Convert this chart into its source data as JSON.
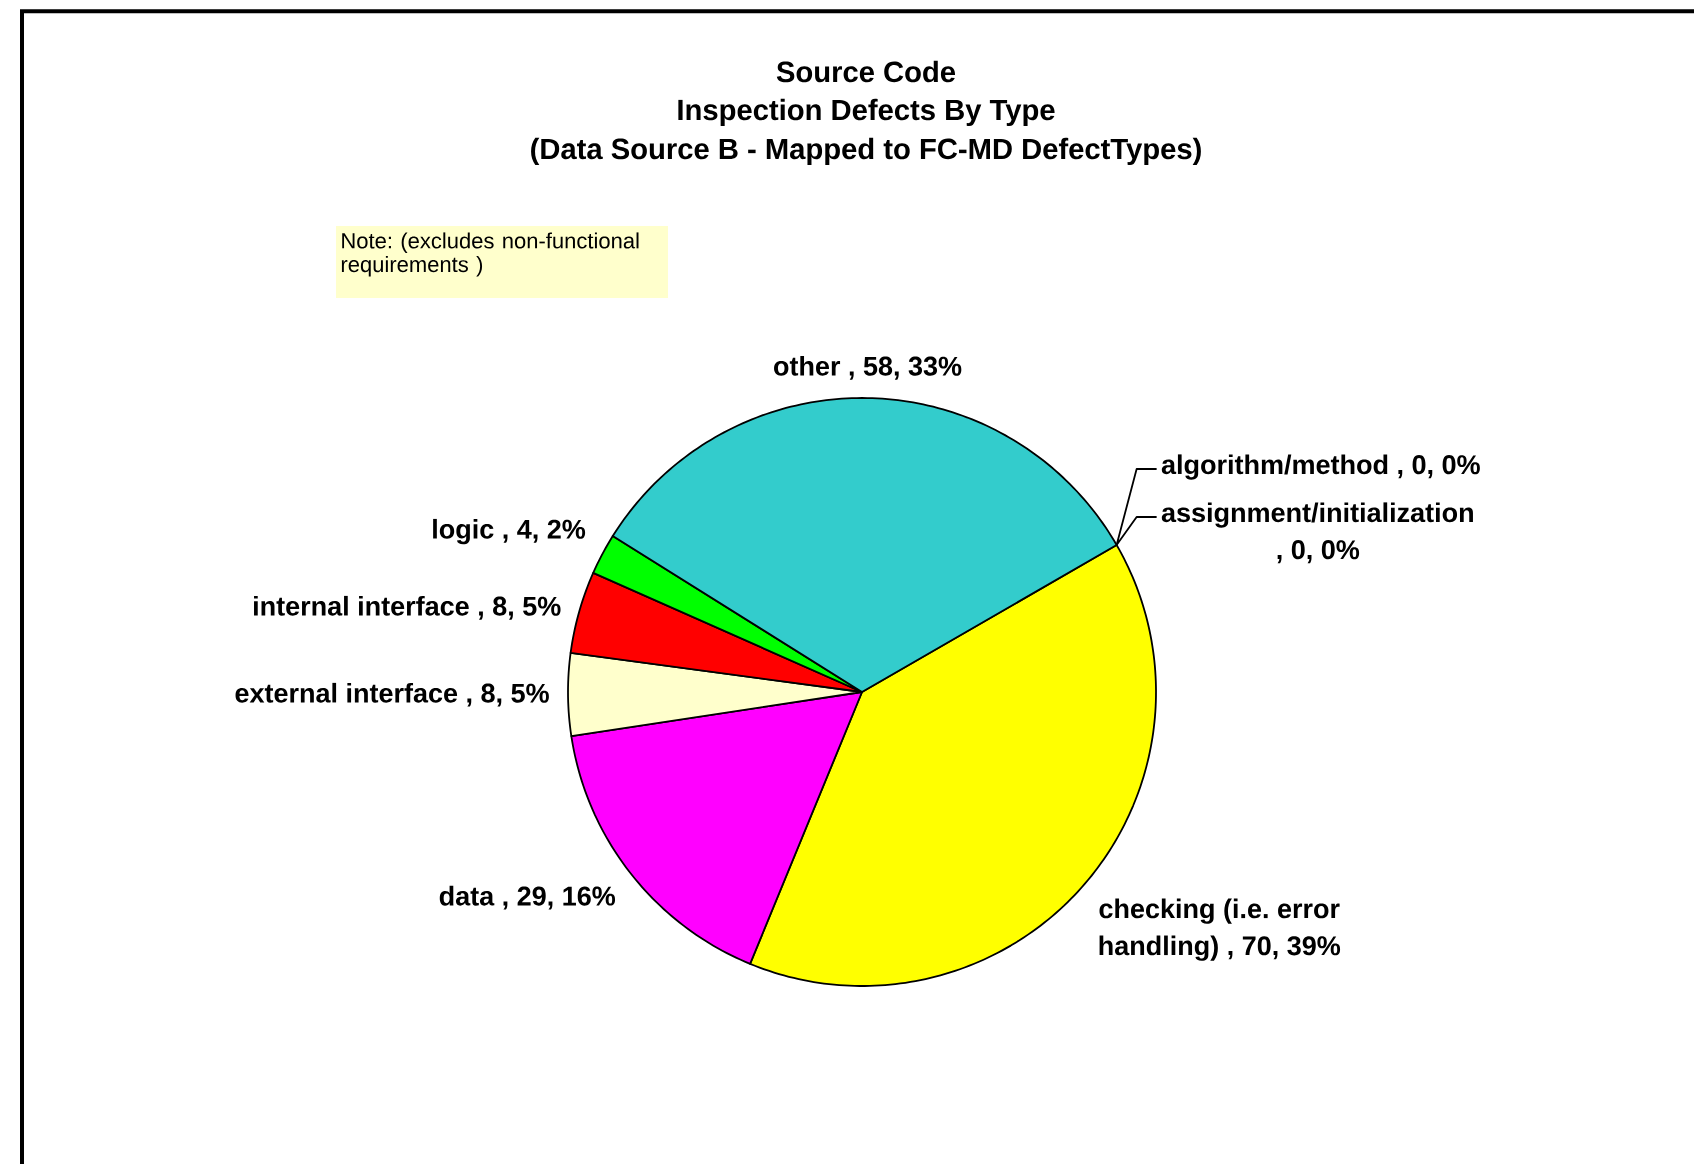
{
  "chart_data": {
    "type": "pie",
    "title": "Source Code",
    "subtitle": "Inspection Defects By Type",
    "categories": [
      "algorithm/method , 0, 0%",
      "assignment/initialization , 0, 0%",
      "checking (i.e. error handling) , 70, 39%",
      "data , 29, 16%",
      "external interface , 8, 5%",
      "internal interface , 8, 5%",
      "logic , 4, 2%",
      "other , 58, 33%"
    ],
    "values": [
      0,
      0,
      70,
      29,
      8,
      8,
      4,
      58
    ],
    "colors": [
      null,
      null,
      "#ffff00",
      "#ff00ff",
      "#ffffcc",
      "#ff0000",
      "#00ff00",
      "#33cccc"
    ],
    "annotations": [
      "(Data Source B - Mapped to FC-MD DefectTypes)",
      "Note: (excludes non-functional requirements )"
    ]
  }
}
